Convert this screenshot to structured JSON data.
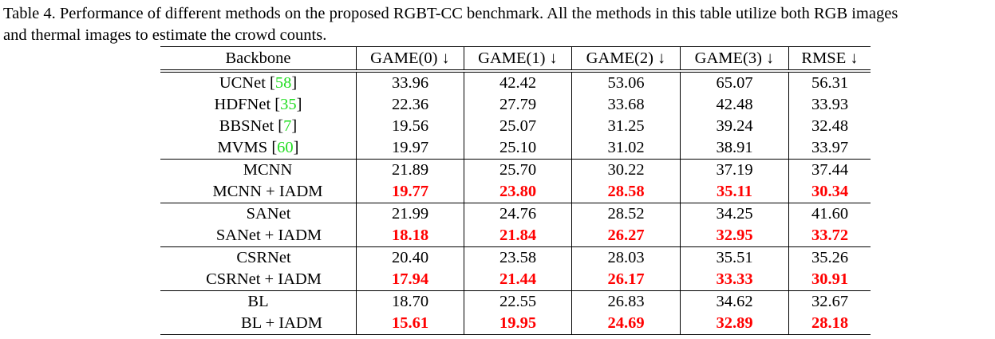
{
  "caption": {
    "line1": "Table 4. Performance of different methods on the proposed RGBT-CC benchmark. All the methods in this table utilize both RGB images",
    "line2": "and thermal images to estimate the crowd counts."
  },
  "table": {
    "headers": [
      "Backbone",
      "GAME(0) ↓",
      "GAME(1) ↓",
      "GAME(2) ↓",
      "GAME(3) ↓",
      "RMSE ↓"
    ],
    "baselines": [
      {
        "name": "UCNet",
        "ref": "58",
        "values": [
          "33.96",
          "42.42",
          "53.06",
          "65.07",
          "56.31"
        ]
      },
      {
        "name": "HDFNet",
        "ref": "35",
        "values": [
          "22.36",
          "27.79",
          "33.68",
          "42.48",
          "33.93"
        ]
      },
      {
        "name": "BBSNet",
        "ref": "7",
        "values": [
          "19.56",
          "25.07",
          "31.25",
          "39.24",
          "32.48"
        ]
      },
      {
        "name": "MVMS",
        "ref": "60",
        "values": [
          "19.97",
          "25.10",
          "31.02",
          "38.91",
          "33.97"
        ]
      }
    ],
    "groups": [
      {
        "base": {
          "name": "MCNN",
          "values": [
            "21.89",
            "25.70",
            "30.22",
            "37.19",
            "37.44"
          ]
        },
        "ours": {
          "name": "MCNN + IADM",
          "values": [
            "19.77",
            "23.80",
            "28.58",
            "35.11",
            "30.34"
          ]
        }
      },
      {
        "base": {
          "name": "SANet",
          "values": [
            "21.99",
            "24.76",
            "28.52",
            "34.25",
            "41.60"
          ]
        },
        "ours": {
          "name": "SANet + IADM",
          "values": [
            "18.18",
            "21.84",
            "26.27",
            "32.95",
            "33.72"
          ]
        }
      },
      {
        "base": {
          "name": "CSRNet",
          "values": [
            "20.40",
            "23.58",
            "28.03",
            "35.51",
            "35.26"
          ]
        },
        "ours": {
          "name": "CSRNet + IADM",
          "values": [
            "17.94",
            "21.44",
            "26.17",
            "33.33",
            "30.91"
          ]
        }
      },
      {
        "base": {
          "name": "BL",
          "values": [
            "18.70",
            "22.55",
            "26.83",
            "34.62",
            "32.67"
          ]
        },
        "ours": {
          "name": "BL + IADM",
          "values": [
            "15.61",
            "19.95",
            "24.69",
            "32.89",
            "28.18"
          ]
        }
      }
    ]
  },
  "colors": {
    "best": "#ff0000",
    "citation": "#22dd22"
  }
}
